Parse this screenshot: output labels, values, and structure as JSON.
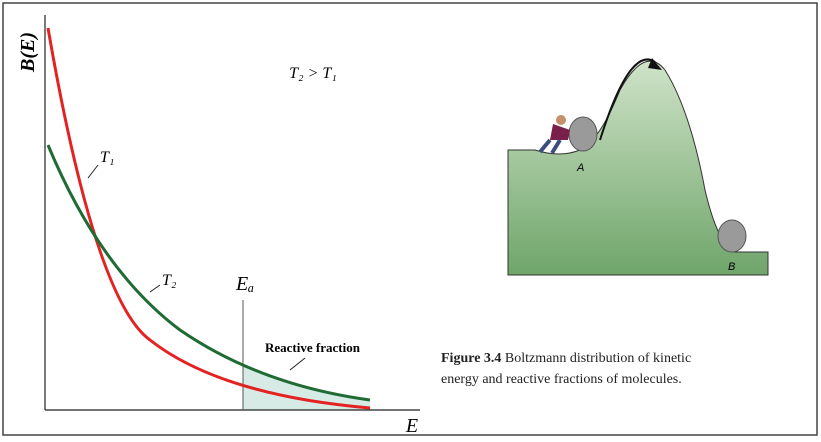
{
  "graph": {
    "y_axis_label": "B(E)",
    "x_axis_label": "E",
    "condition": "T₂ > T₁",
    "curves": [
      {
        "label": "T₁"
      },
      {
        "label": "T₂"
      }
    ],
    "threshold_label": "Eₐ",
    "region_label": "Reactive fraction"
  },
  "illustration": {
    "point_a": "A",
    "point_b": "B"
  },
  "caption": {
    "label": "Figure 3.4",
    "lines": [
      "Boltzmann distribution of kinetic",
      "energy and reactive fractions of molecules."
    ]
  }
}
